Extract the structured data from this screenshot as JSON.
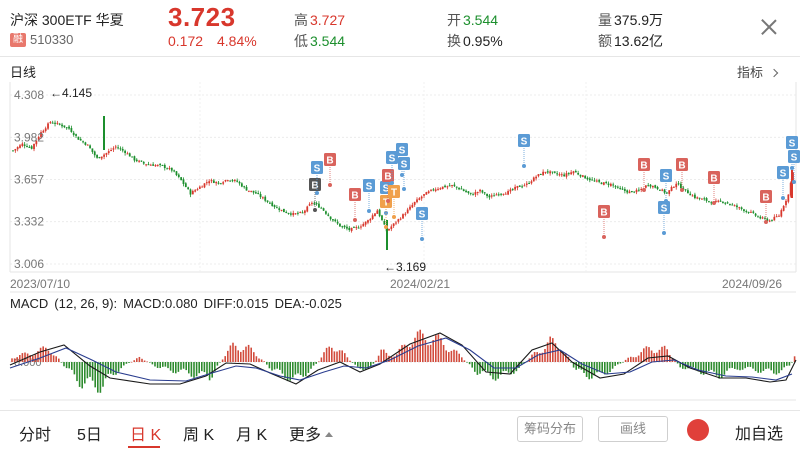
{
  "header": {
    "name": "沪深 300ETF 华夏",
    "badge": "融",
    "code": "510330",
    "price": "3.723",
    "change": "0.172",
    "change_pct": "4.84%",
    "high_label": "高",
    "high": "3.727",
    "low_label": "低",
    "low": "3.544",
    "open_label": "开",
    "open": "3.544",
    "turnover_label": "换",
    "turnover": "0.95%",
    "volume_label": "量",
    "volume": "375.9万",
    "amount_label": "额",
    "amount": "13.62亿"
  },
  "chart_title": "日线",
  "indicator_button": "指标",
  "price_axis": [
    "4.308",
    "3.982",
    "3.657",
    "3.332",
    "3.006"
  ],
  "date_axis": [
    "2023/07/10",
    "2024/02/21",
    "2024/09/26"
  ],
  "annotations": {
    "max": "←4.145",
    "min": "←3.169"
  },
  "macd": {
    "title": "MACD",
    "params": "(12, 26, 9):",
    "macd": "MACD:0.080",
    "diff": "DIFF:0.015",
    "dea": "DEA:-0.025",
    "zero_label": "0.000"
  },
  "tabs": [
    {
      "label": "分时"
    },
    {
      "label": "5日"
    },
    {
      "label": "日 K"
    },
    {
      "label": "周 K"
    },
    {
      "label": "月 K"
    },
    {
      "label": "更多"
    }
  ],
  "buttons": {
    "chips": "筹码分布",
    "draw": "画线",
    "add": "加自选"
  },
  "colors": {
    "up": "#d8372c",
    "down": "#1c8f2d",
    "buy_marker": "#d9635c",
    "sell_marker": "#5b9bd5",
    "t_marker": "#f0a04b",
    "b_dark": "#555555"
  },
  "chart_data": {
    "type": "candlestick",
    "ylim": [
      3.006,
      4.308
    ],
    "x_ticks": [
      "2023/07/10",
      "2024/02/21",
      "2024/09/26"
    ],
    "max_price": 4.145,
    "min_price": 3.169,
    "close_path": [
      [
        0,
        3.88
      ],
      [
        4,
        3.93
      ],
      [
        8,
        3.9
      ],
      [
        12,
        4.02
      ],
      [
        16,
        4.1
      ],
      [
        20,
        4.08
      ],
      [
        24,
        4.05
      ],
      [
        28,
        3.97
      ],
      [
        32,
        3.92
      ],
      [
        36,
        3.82
      ],
      [
        40,
        3.86
      ],
      [
        44,
        3.91
      ],
      [
        48,
        3.87
      ],
      [
        52,
        3.81
      ],
      [
        56,
        3.78
      ],
      [
        60,
        3.77
      ],
      [
        64,
        3.76
      ],
      [
        68,
        3.73
      ],
      [
        72,
        3.65
      ],
      [
        76,
        3.55
      ],
      [
        80,
        3.6
      ],
      [
        84,
        3.65
      ],
      [
        88,
        3.63
      ],
      [
        92,
        3.66
      ],
      [
        96,
        3.64
      ],
      [
        100,
        3.58
      ],
      [
        104,
        3.55
      ],
      [
        108,
        3.5
      ],
      [
        112,
        3.45
      ],
      [
        116,
        3.41
      ],
      [
        120,
        3.39
      ],
      [
        124,
        3.4
      ],
      [
        128,
        3.48
      ],
      [
        132,
        3.44
      ],
      [
        136,
        3.36
      ],
      [
        140,
        3.3
      ],
      [
        144,
        3.27
      ],
      [
        148,
        3.29
      ],
      [
        152,
        3.34
      ],
      [
        156,
        3.42
      ],
      [
        160,
        3.26
      ],
      [
        164,
        3.33
      ],
      [
        168,
        3.4
      ],
      [
        172,
        3.48
      ],
      [
        176,
        3.54
      ],
      [
        180,
        3.58
      ],
      [
        184,
        3.6
      ],
      [
        188,
        3.61
      ],
      [
        192,
        3.58
      ],
      [
        196,
        3.54
      ],
      [
        200,
        3.57
      ],
      [
        204,
        3.52
      ],
      [
        208,
        3.55
      ],
      [
        212,
        3.56
      ],
      [
        216,
        3.6
      ],
      [
        220,
        3.62
      ],
      [
        224,
        3.68
      ],
      [
        228,
        3.72
      ],
      [
        232,
        3.7
      ],
      [
        236,
        3.69
      ],
      [
        240,
        3.72
      ],
      [
        244,
        3.68
      ],
      [
        248,
        3.65
      ],
      [
        252,
        3.63
      ],
      [
        256,
        3.62
      ],
      [
        260,
        3.58
      ],
      [
        264,
        3.56
      ],
      [
        268,
        3.57
      ],
      [
        272,
        3.62
      ],
      [
        276,
        3.59
      ],
      [
        280,
        3.55
      ],
      [
        284,
        3.63
      ],
      [
        288,
        3.57
      ],
      [
        292,
        3.52
      ],
      [
        296,
        3.5
      ],
      [
        300,
        3.48
      ],
      [
        304,
        3.49
      ],
      [
        308,
        3.46
      ],
      [
        312,
        3.43
      ],
      [
        316,
        3.4
      ],
      [
        320,
        3.36
      ],
      [
        324,
        3.34
      ],
      [
        328,
        3.38
      ],
      [
        332,
        3.54
      ],
      [
        334,
        3.72
      ]
    ],
    "macd_series": {
      "diff_desc": "fast line",
      "dea_desc": "slow line"
    }
  }
}
